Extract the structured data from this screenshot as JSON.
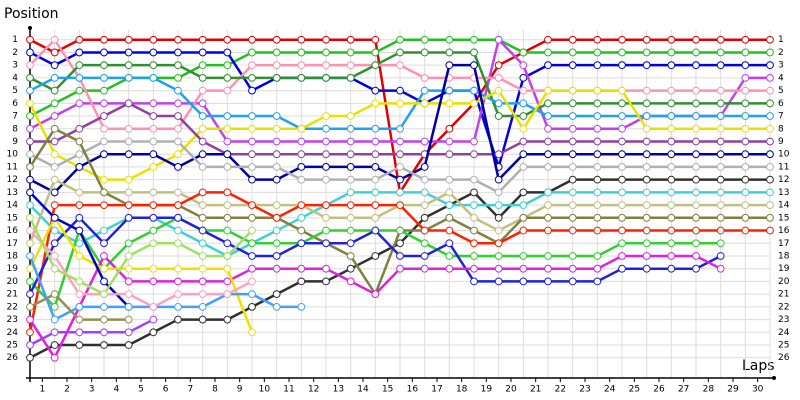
{
  "chart_data": {
    "type": "line",
    "y_label": "Position",
    "x_label": "Laps",
    "x": [
      0,
      1,
      2,
      3,
      4,
      5,
      6,
      7,
      8,
      9,
      10,
      11,
      12,
      13,
      14,
      15,
      16,
      17,
      18,
      19,
      20,
      21,
      22,
      23,
      24,
      25,
      26,
      27,
      28,
      29,
      30
    ],
    "xlim": [
      0,
      30
    ],
    "xticks": [
      {
        "value": 0.5,
        "label": "1"
      },
      {
        "value": 1.5,
        "label": "2"
      },
      {
        "value": 2.5,
        "label": "3"
      },
      {
        "value": 3.5,
        "label": "4"
      },
      {
        "value": 4.5,
        "label": "5"
      },
      {
        "value": 5.5,
        "label": "6"
      },
      {
        "value": 6.5,
        "label": "7"
      },
      {
        "value": 7.5,
        "label": "8"
      },
      {
        "value": 8.5,
        "label": "9"
      },
      {
        "value": 9.5,
        "label": "10"
      },
      {
        "value": 10.5,
        "label": "11"
      },
      {
        "value": 11.5,
        "label": "12"
      },
      {
        "value": 12.5,
        "label": "13"
      },
      {
        "value": 13.5,
        "label": "14"
      },
      {
        "value": 14.5,
        "label": "15"
      },
      {
        "value": 15.5,
        "label": "16"
      },
      {
        "value": 16.5,
        "label": "17"
      },
      {
        "value": 17.5,
        "label": "18"
      },
      {
        "value": 18.5,
        "label": "19"
      },
      {
        "value": 19.5,
        "label": "20"
      },
      {
        "value": 20.5,
        "label": "21"
      },
      {
        "value": 21.5,
        "label": "22"
      },
      {
        "value": 22.5,
        "label": "23"
      },
      {
        "value": 23.5,
        "label": "24"
      },
      {
        "value": 24.5,
        "label": "25"
      },
      {
        "value": 25.5,
        "label": "26"
      },
      {
        "value": 26.5,
        "label": "27"
      },
      {
        "value": 27.5,
        "label": "28"
      },
      {
        "value": 28.5,
        "label": "29"
      },
      {
        "value": 29.5,
        "label": "30"
      }
    ],
    "ylim": [
      27.2,
      0
    ],
    "yticks": [
      1,
      2,
      3,
      4,
      5,
      6,
      7,
      8,
      9,
      10,
      11,
      12,
      13,
      14,
      15,
      16,
      17,
      18,
      19,
      20,
      21,
      22,
      23,
      24,
      25,
      26
    ],
    "grid": true,
    "series": [
      {
        "color": "#e00000",
        "values": [
          1,
          2,
          1,
          1,
          1,
          1,
          1,
          1,
          1,
          1,
          1,
          1,
          1,
          1,
          1,
          13,
          10,
          8,
          6,
          3,
          2,
          1,
          1,
          1,
          1,
          1,
          1,
          1,
          1,
          1,
          1
        ]
      },
      {
        "color": "#20c020",
        "values": [
          7,
          6,
          5,
          5,
          4,
          4,
          4,
          3,
          3,
          2,
          2,
          2,
          2,
          2,
          2,
          1,
          1,
          1,
          1,
          1,
          2,
          2,
          2,
          2,
          2,
          2,
          2,
          2,
          2,
          2,
          2
        ]
      },
      {
        "color": "#0000e0",
        "values": [
          2,
          3,
          2,
          2,
          2,
          2,
          2,
          2,
          2,
          5,
          4,
          4,
          4,
          4,
          5,
          5,
          6,
          5,
          5,
          11,
          4,
          3,
          3,
          3,
          3,
          3,
          3,
          3,
          3,
          3,
          3
        ]
      },
      {
        "color": "#c040f0",
        "values": [
          8,
          7,
          6,
          6,
          6,
          6,
          6,
          6,
          9,
          9,
          9,
          9,
          9,
          9,
          9,
          9,
          9,
          9,
          9,
          1,
          3,
          8,
          8,
          8,
          8,
          7,
          7,
          7,
          7,
          4,
          4
        ]
      },
      {
        "color": "#ff90b0",
        "values": [
          3,
          1,
          4,
          8,
          8,
          8,
          8,
          5,
          5,
          3,
          3,
          3,
          3,
          3,
          3,
          3,
          4,
          4,
          4,
          4,
          5,
          5,
          5,
          5,
          5,
          5,
          5,
          5,
          5,
          5,
          5
        ]
      },
      {
        "color": "#309030",
        "values": [
          4,
          5,
          3,
          3,
          3,
          3,
          3,
          4,
          4,
          4,
          4,
          4,
          4,
          4,
          3,
          2,
          2,
          2,
          2,
          7,
          7,
          6,
          6,
          6,
          6,
          6,
          6,
          6,
          6,
          6,
          6
        ]
      },
      {
        "color": "#20a0f0",
        "values": [
          5,
          4,
          4,
          4,
          4,
          4,
          5,
          7,
          7,
          7,
          7,
          8,
          8,
          8,
          8,
          8,
          5,
          5,
          5,
          6,
          6,
          7,
          7,
          7,
          7,
          7,
          7,
          7,
          7,
          7,
          7
        ]
      },
      {
        "color": "#e8e000",
        "values": [
          6,
          10,
          11,
          12,
          12,
          11,
          10,
          8,
          8,
          8,
          8,
          8,
          7,
          7,
          6,
          6,
          6,
          6,
          6,
          5,
          8,
          5,
          5,
          5,
          5,
          8,
          8,
          8,
          8,
          8,
          8
        ]
      },
      {
        "color": "#9040a0",
        "values": [
          9,
          9,
          8,
          7,
          6,
          7,
          7,
          9,
          10,
          10,
          10,
          10,
          10,
          10,
          10,
          10,
          10,
          10,
          10,
          10,
          9,
          9,
          9,
          9,
          9,
          9,
          9,
          9,
          9,
          9,
          9
        ]
      },
      {
        "color": "#0000a0",
        "values": [
          12,
          13,
          11,
          10,
          10,
          10,
          11,
          10,
          10,
          12,
          12,
          11,
          11,
          11,
          11,
          12,
          11,
          3,
          3,
          12,
          10,
          10,
          10,
          10,
          10,
          10,
          10,
          10,
          10,
          10,
          10
        ]
      },
      {
        "color": "#b0b0b0",
        "values": [
          10,
          11,
          10,
          9,
          9,
          9,
          9,
          11,
          11,
          11,
          11,
          12,
          12,
          12,
          12,
          11,
          12,
          12,
          12,
          13,
          11,
          11,
          11,
          11,
          11,
          11,
          11,
          11,
          11,
          11,
          11
        ]
      },
      {
        "color": "#303030",
        "values": [
          26,
          25,
          25,
          25,
          25,
          24,
          23,
          23,
          23,
          22,
          21,
          20,
          20,
          19,
          18,
          17,
          15,
          14,
          13,
          15,
          13,
          13,
          12,
          12,
          12,
          12,
          12,
          12,
          12,
          12,
          12
        ]
      },
      {
        "color": "#40d0d0",
        "values": [
          14,
          16,
          17,
          16,
          15,
          15,
          16,
          17,
          18,
          17,
          16,
          15,
          14,
          13,
          13,
          13,
          13,
          14,
          14,
          14,
          14,
          13,
          13,
          13,
          13,
          13,
          13,
          13,
          13,
          13,
          13
        ]
      },
      {
        "color": "#c0c080",
        "values": [
          17,
          12,
          13,
          13,
          13,
          13,
          13,
          14,
          14,
          14,
          14,
          14,
          15,
          15,
          15,
          14,
          14,
          13,
          15,
          16,
          15,
          14,
          14,
          14,
          14,
          14,
          14,
          14,
          14,
          14,
          14
        ]
      },
      {
        "color": "#808040",
        "values": [
          11,
          8,
          9,
          13,
          14,
          14,
          14,
          15,
          15,
          15,
          15,
          16,
          17,
          18,
          21,
          16,
          16,
          15,
          16,
          17,
          15,
          15,
          15,
          15,
          15,
          15,
          15,
          15,
          15,
          15,
          15
        ]
      },
      {
        "color": "#ff2000",
        "values": [
          24,
          14,
          14,
          14,
          14,
          14,
          14,
          13,
          13,
          14,
          15,
          14,
          14,
          14,
          14,
          14,
          16,
          16,
          17,
          17,
          16,
          16,
          16,
          16,
          16,
          16,
          16,
          16,
          16,
          16,
          16
        ]
      },
      {
        "color": "#30d030",
        "values": [
          20,
          22,
          16,
          19,
          17,
          16,
          15,
          16,
          16,
          17,
          17,
          17,
          16,
          16,
          16,
          16,
          17,
          18,
          18,
          18,
          18,
          18,
          18,
          18,
          17,
          17,
          17,
          17,
          17,
          null,
          null
        ]
      },
      {
        "color": "#2020e0",
        "values": [
          21,
          17,
          15,
          17,
          15,
          15,
          15,
          16,
          17,
          18,
          18,
          17,
          17,
          17,
          16,
          18,
          18,
          17,
          20,
          20,
          20,
          20,
          20,
          20,
          19,
          19,
          19,
          19,
          18,
          null,
          null
        ]
      },
      {
        "color": "#e020e0",
        "values": [
          23,
          26,
          22,
          18,
          20,
          20,
          20,
          20,
          20,
          19,
          19,
          19,
          19,
          20,
          21,
          19,
          19,
          19,
          19,
          19,
          19,
          19,
          19,
          19,
          18,
          18,
          18,
          18,
          19,
          null,
          null
        ]
      },
      {
        "color": "#f0e000",
        "values": [
          19,
          15,
          18,
          19,
          19,
          19,
          19,
          19,
          19,
          24,
          null,
          null,
          null,
          null,
          null,
          null,
          null,
          null,
          null,
          null,
          null,
          null,
          null,
          null,
          null,
          null,
          null,
          null,
          null,
          null,
          null
        ]
      },
      {
        "color": "#0000c0",
        "values": [
          13,
          15,
          16,
          20,
          22,
          null,
          null,
          null,
          null,
          null,
          null,
          null,
          null,
          null,
          null,
          null,
          null,
          null,
          null,
          null,
          null,
          null,
          null,
          null,
          null,
          null,
          null,
          null,
          null,
          null,
          null
        ]
      },
      {
        "color": "#40a0ff",
        "values": [
          18,
          23,
          22,
          22,
          22,
          22,
          22,
          22,
          21,
          21,
          22,
          22,
          null,
          null,
          null,
          null,
          null,
          null,
          null,
          null,
          null,
          null,
          null,
          null,
          null,
          null,
          null,
          null,
          null,
          null,
          null
        ]
      },
      {
        "color": "#909050",
        "values": [
          22,
          21,
          23,
          23,
          23,
          null,
          null,
          null,
          null,
          null,
          null,
          null,
          null,
          null,
          null,
          null,
          null,
          null,
          null,
          null,
          null,
          null,
          null,
          null,
          null,
          null,
          null,
          null,
          null,
          null,
          null
        ]
      },
      {
        "color": "#a040ff",
        "values": [
          25,
          24,
          24,
          24,
          24,
          23,
          null,
          null,
          null,
          null,
          null,
          null,
          null,
          null,
          null,
          null,
          null,
          null,
          null,
          null,
          null,
          null,
          null,
          null,
          null,
          null,
          null,
          null,
          null,
          null,
          null
        ]
      },
      {
        "color": "#ffa0c0",
        "values": [
          16,
          18,
          21,
          21,
          21,
          22,
          21,
          21,
          21,
          20,
          null,
          null,
          null,
          null,
          null,
          null,
          null,
          null,
          null,
          null,
          null,
          null,
          null,
          null,
          null,
          null,
          null,
          null,
          null,
          null,
          null
        ]
      },
      {
        "color": "#a0e060",
        "values": [
          15,
          19,
          20,
          21,
          18,
          17,
          17,
          18,
          18,
          16,
          null,
          null,
          null,
          null,
          null,
          null,
          null,
          null,
          null,
          null,
          null,
          null,
          null,
          null,
          null,
          null,
          null,
          null,
          null,
          null,
          null
        ]
      }
    ]
  }
}
